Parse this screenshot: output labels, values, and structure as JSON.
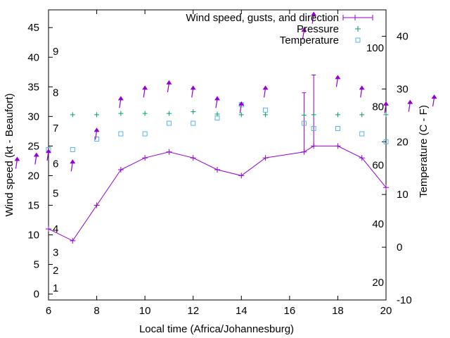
{
  "chart_data": {
    "type": "line",
    "xlabel": "Local time (Africa/Johannesburg)",
    "ylabel_left": "Wind speed (kt - Beaufort)",
    "ylabel_right": "Temperature (C - F)",
    "x_range": [
      6,
      20
    ],
    "y_left_range": [
      -1,
      48
    ],
    "y_right_range": [
      -10,
      45
    ],
    "x_ticks": [
      6,
      8,
      10,
      12,
      14,
      16,
      18,
      20
    ],
    "y_left_ticks": [
      0,
      5,
      10,
      15,
      20,
      25,
      30,
      35,
      40,
      45
    ],
    "y_right_ticks": [
      -10,
      0,
      10,
      20,
      30,
      40
    ],
    "fahrenheit_ticks": [
      20,
      40,
      60,
      80,
      100
    ],
    "beaufort": [
      {
        "level": "1",
        "kt": 1
      },
      {
        "level": "2",
        "kt": 4
      },
      {
        "level": "3",
        "kt": 7
      },
      {
        "level": "4",
        "kt": 11
      },
      {
        "level": "5",
        "kt": 17
      },
      {
        "level": "6",
        "kt": 22
      },
      {
        "level": "7",
        "kt": 28
      },
      {
        "level": "8",
        "kt": 34
      },
      {
        "level": "9",
        "kt": 41
      }
    ],
    "legend": {
      "wind": "Wind speed, gusts, and direction",
      "pressure": "Pressure",
      "temperature": "Temperature"
    },
    "colors": {
      "wind": "#9400d3",
      "pressure": "#009e73",
      "temperature": "#56b4e9",
      "arrow": "#9400d3"
    },
    "wind_series": {
      "x": [
        6,
        7,
        8,
        9,
        10,
        11,
        12,
        13,
        14,
        15,
        16.6,
        17,
        18,
        19,
        20
      ],
      "y": [
        11,
        9,
        15,
        21,
        23,
        24,
        23,
        21,
        20,
        23,
        24,
        25,
        25,
        23,
        18
      ]
    },
    "gusts": [
      {
        "x": 16.6,
        "y": 34
      },
      {
        "x": 17,
        "y": 37
      }
    ],
    "pressure_series": {
      "x": [
        7,
        8,
        9,
        10,
        11,
        12,
        13,
        14,
        15,
        16.6,
        17,
        18,
        19,
        20
      ],
      "y": [
        30.3,
        30.3,
        30.5,
        30.5,
        30.5,
        30.8,
        30.4,
        30.3,
        30.3,
        30.2,
        30.3,
        30.3,
        30.3,
        30.3
      ]
    },
    "temperature_series": {
      "x": [
        6,
        7,
        8,
        9,
        10,
        11,
        12,
        13,
        14,
        15,
        16.6,
        17,
        18,
        19,
        20
      ],
      "y": [
        18.5,
        18.5,
        20.5,
        21.5,
        21.5,
        23.5,
        23.5,
        24.5,
        27,
        26,
        23.5,
        22.5,
        22.5,
        21.5,
        20
      ]
    },
    "direction_arrows": [
      {
        "x": 4.7,
        "y": 16.5
      },
      {
        "x": 5.5,
        "y": 17.3
      },
      {
        "x": 6,
        "y": 18
      },
      {
        "x": 7,
        "y": 16
      },
      {
        "x": 8,
        "y": 22
      },
      {
        "x": 9,
        "y": 28
      },
      {
        "x": 10,
        "y": 30
      },
      {
        "x": 11,
        "y": 31
      },
      {
        "x": 12,
        "y": 30
      },
      {
        "x": 13,
        "y": 28
      },
      {
        "x": 14,
        "y": 27
      },
      {
        "x": 15,
        "y": 30
      },
      {
        "x": 16.6,
        "y": 41
      },
      {
        "x": 17,
        "y": 44
      },
      {
        "x": 18,
        "y": 32
      },
      {
        "x": 19,
        "y": 30
      },
      {
        "x": 20,
        "y": 27
      },
      {
        "x": 21,
        "y": 27.3
      },
      {
        "x": 22,
        "y": 28.3
      }
    ]
  }
}
